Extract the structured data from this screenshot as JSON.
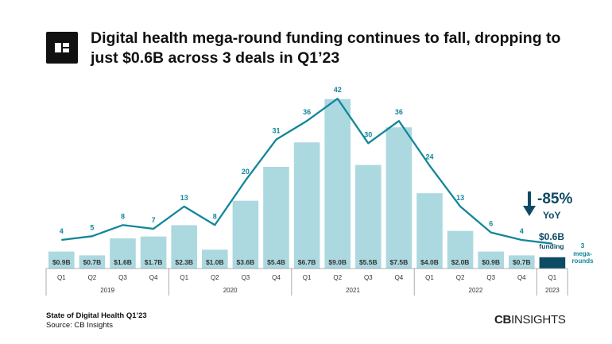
{
  "title": "Digital health mega-round funding continues to fall, dropping to just $0.6B across 3 deals in Q1’23",
  "footer": {
    "report": "State of Digital Health Q1’23",
    "source": "Source: CB Insights",
    "brand_bold": "CB",
    "brand_rest": "INSIGHTS"
  },
  "callout": {
    "change": "-85%",
    "change_label": "YoY",
    "funding": "$0.6B",
    "funding_label": "funding",
    "deals": "3",
    "deals_label_1": "mega-",
    "deals_label_2": "rounds"
  },
  "colors": {
    "bar": "#acd8e0",
    "bar_highlight": "#0d4a63",
    "line": "#12869a",
    "callout": "#0d4a63"
  },
  "chart_data": {
    "type": "bar+line",
    "categories": [
      "Q1",
      "Q2",
      "Q3",
      "Q4",
      "Q1",
      "Q2",
      "Q3",
      "Q4",
      "Q1",
      "Q2",
      "Q3",
      "Q4",
      "Q1",
      "Q2",
      "Q3",
      "Q4",
      "Q1"
    ],
    "years": [
      {
        "label": "2019",
        "quarters": 4
      },
      {
        "label": "2020",
        "quarters": 4
      },
      {
        "label": "2021",
        "quarters": 4
      },
      {
        "label": "2022",
        "quarters": 4
      },
      {
        "label": "2023",
        "quarters": 1
      }
    ],
    "series": [
      {
        "type": "bar",
        "values": [
          0.9,
          0.7,
          1.6,
          1.7,
          2.3,
          1.0,
          3.6,
          5.4,
          6.7,
          9.0,
          5.5,
          7.5,
          4.0,
          2.0,
          0.9,
          0.7,
          0.6
        ],
        "labels": [
          "$0.9B",
          "$0.7B",
          "$1.6B",
          "$1.7B",
          "$2.3B",
          "$1.0B",
          "$3.6B",
          "$5.4B",
          "$6.7B",
          "$9.0B",
          "$5.5B",
          "$7.5B",
          "$4.0B",
          "$2.0B",
          "$0.9B",
          "$0.7B",
          ""
        ]
      },
      {
        "type": "line",
        "values": [
          4,
          5,
          8,
          7,
          13,
          8,
          20,
          31,
          36,
          42,
          30,
          36,
          24,
          13,
          6,
          4,
          3
        ]
      }
    ]
  }
}
